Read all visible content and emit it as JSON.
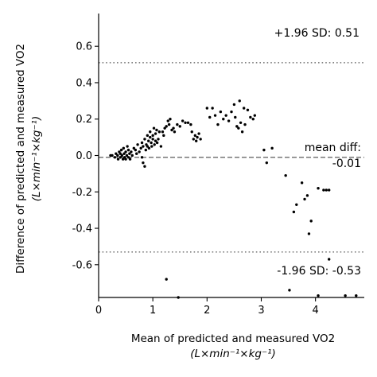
{
  "chart_data": {
    "type": "scatter",
    "title": "",
    "xlabel": "Mean of predicted and measured VO2",
    "xlabel_unit": "(L×min⁻¹×kg⁻¹)",
    "ylabel": "Difference of predicted and measured VO2",
    "ylabel_unit": "(L×min⁻¹×kg⁻¹)",
    "xlim": [
      0,
      4.9
    ],
    "ylim": [
      -0.78,
      0.78
    ],
    "xticks": [
      "0",
      "1",
      "2",
      "3",
      "4"
    ],
    "yticks": [
      "0.6",
      "0.4",
      "0.2",
      "0.0",
      "-0.2",
      "-0.4",
      "-0.6"
    ],
    "xtick_values": [
      0,
      1,
      2,
      3,
      4
    ],
    "ytick_values": [
      0.6,
      0.4,
      0.2,
      0.0,
      -0.2,
      -0.4,
      -0.6
    ],
    "grid": false,
    "colors": {
      "points": "#000000",
      "mean_line": "#808080",
      "limit_lines": "#808080"
    },
    "lines": [
      {
        "id": "upper-limit",
        "value": 0.51,
        "style": "dotted",
        "label": "+1.96 SD: 0.51"
      },
      {
        "id": "mean-diff",
        "value": -0.01,
        "style": "dashed",
        "label_line1": "mean diff:",
        "label_line2": "-0.01"
      },
      {
        "id": "lower-limit",
        "value": -0.53,
        "style": "dotted",
        "label": "-1.96 SD: -0.53"
      }
    ],
    "points": [
      [
        0.22,
        0.0
      ],
      [
        0.25,
        0.0
      ],
      [
        0.3,
        -0.01
      ],
      [
        0.32,
        0.01
      ],
      [
        0.35,
        0.0
      ],
      [
        0.36,
        -0.02
      ],
      [
        0.38,
        0.02
      ],
      [
        0.4,
        0.01
      ],
      [
        0.4,
        -0.01
      ],
      [
        0.42,
        0.03
      ],
      [
        0.43,
        0.0
      ],
      [
        0.45,
        -0.02
      ],
      [
        0.46,
        0.04
      ],
      [
        0.47,
        0.01
      ],
      [
        0.48,
        -0.01
      ],
      [
        0.5,
        0.02
      ],
      [
        0.5,
        -0.02
      ],
      [
        0.52,
        0.0
      ],
      [
        0.53,
        0.05
      ],
      [
        0.55,
        -0.01
      ],
      [
        0.55,
        0.03
      ],
      [
        0.57,
        0.01
      ],
      [
        0.58,
        -0.02
      ],
      [
        0.6,
        0.02
      ],
      [
        0.62,
        0.0
      ],
      [
        0.65,
        0.04
      ],
      [
        0.68,
        0.03
      ],
      [
        0.7,
        0.01
      ],
      [
        0.72,
        0.06
      ],
      [
        0.75,
        0.02
      ],
      [
        0.78,
        0.04
      ],
      [
        0.8,
        -0.01
      ],
      [
        0.8,
        0.07
      ],
      [
        0.82,
        0.05
      ],
      [
        0.82,
        -0.04
      ],
      [
        0.85,
        0.09
      ],
      [
        0.85,
        -0.06
      ],
      [
        0.87,
        0.03
      ],
      [
        0.88,
        0.06
      ],
      [
        0.9,
        0.11
      ],
      [
        0.9,
        0.05
      ],
      [
        0.92,
        0.08
      ],
      [
        0.93,
        0.04
      ],
      [
        0.95,
        0.1
      ],
      [
        0.95,
        0.13
      ],
      [
        0.97,
        0.07
      ],
      [
        0.98,
        0.05
      ],
      [
        1.0,
        0.11
      ],
      [
        1.0,
        0.09
      ],
      [
        1.02,
        0.15
      ],
      [
        1.03,
        0.06
      ],
      [
        1.05,
        0.12
      ],
      [
        1.05,
        0.08
      ],
      [
        1.07,
        0.14
      ],
      [
        1.08,
        0.07
      ],
      [
        1.1,
        0.09
      ],
      [
        1.12,
        0.13
      ],
      [
        1.15,
        0.05
      ],
      [
        1.18,
        0.13
      ],
      [
        1.2,
        0.11
      ],
      [
        1.22,
        0.15
      ],
      [
        1.25,
        0.16
      ],
      [
        1.28,
        0.19
      ],
      [
        1.3,
        0.17
      ],
      [
        1.32,
        0.2
      ],
      [
        1.35,
        0.14
      ],
      [
        1.38,
        0.15
      ],
      [
        1.4,
        0.13
      ],
      [
        1.45,
        0.17
      ],
      [
        1.5,
        0.16
      ],
      [
        1.55,
        0.19
      ],
      [
        1.6,
        0.18
      ],
      [
        1.65,
        0.18
      ],
      [
        1.7,
        0.17
      ],
      [
        1.72,
        0.13
      ],
      [
        1.75,
        0.09
      ],
      [
        1.78,
        0.11
      ],
      [
        1.8,
        0.08
      ],
      [
        1.82,
        0.1
      ],
      [
        1.85,
        0.12
      ],
      [
        1.88,
        0.09
      ],
      [
        2.0,
        0.26
      ],
      [
        2.05,
        0.21
      ],
      [
        2.1,
        0.26
      ],
      [
        2.15,
        0.22
      ],
      [
        2.2,
        0.17
      ],
      [
        2.25,
        0.24
      ],
      [
        2.3,
        0.2
      ],
      [
        2.35,
        0.22
      ],
      [
        2.4,
        0.19
      ],
      [
        2.45,
        0.24
      ],
      [
        2.5,
        0.28
      ],
      [
        2.52,
        0.21
      ],
      [
        2.55,
        0.16
      ],
      [
        2.58,
        0.15
      ],
      [
        2.6,
        0.3
      ],
      [
        2.62,
        0.18
      ],
      [
        2.65,
        0.13
      ],
      [
        2.68,
        0.26
      ],
      [
        2.7,
        0.17
      ],
      [
        2.75,
        0.25
      ],
      [
        2.8,
        0.21
      ],
      [
        2.85,
        0.2
      ],
      [
        2.88,
        0.22
      ],
      [
        3.05,
        0.03
      ],
      [
        3.1,
        -0.04
      ],
      [
        3.2,
        0.04
      ],
      [
        3.45,
        -0.11
      ],
      [
        3.6,
        -0.31
      ],
      [
        3.65,
        -0.27
      ],
      [
        3.75,
        -0.15
      ],
      [
        3.8,
        -0.24
      ],
      [
        3.85,
        -0.22
      ],
      [
        3.88,
        -0.43
      ],
      [
        3.92,
        -0.36
      ],
      [
        4.05,
        -0.18
      ],
      [
        4.15,
        -0.19
      ],
      [
        4.2,
        -0.19
      ],
      [
        4.25,
        -0.19
      ],
      [
        1.25,
        -0.68
      ],
      [
        1.47,
        -0.78
      ],
      [
        3.52,
        -0.74
      ],
      [
        4.05,
        -0.77
      ],
      [
        4.25,
        -0.57
      ],
      [
        4.55,
        -0.77
      ],
      [
        4.75,
        -0.77
      ]
    ]
  }
}
